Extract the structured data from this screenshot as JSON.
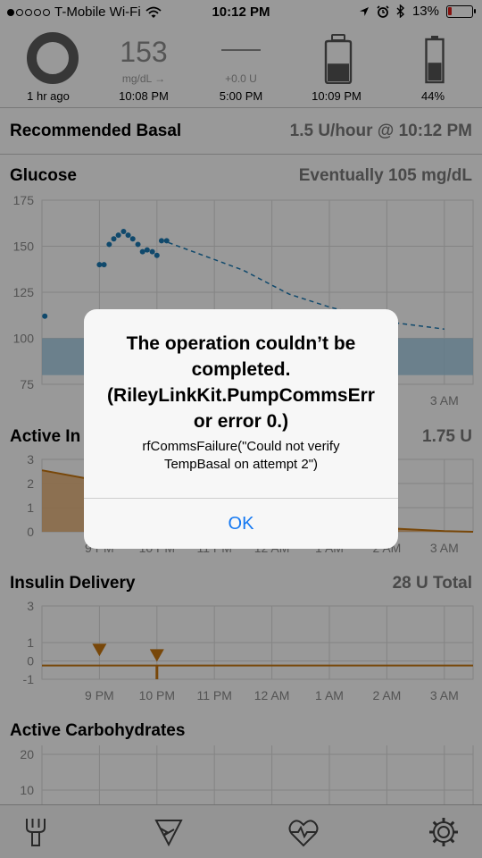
{
  "status_bar": {
    "carrier": "T-Mobile Wi-Fi",
    "time": "10:12 PM",
    "battery": "13%",
    "signal_strength": 1,
    "icons": [
      "wifi-icon",
      "location-icon",
      "alarm-icon",
      "bluetooth-icon",
      "battery-icon"
    ]
  },
  "hud": {
    "loop_caption": "1 hr ago",
    "glucose_value": "153",
    "glucose_unit": "mg/dL →",
    "glucose_time": "10:08 PM",
    "basal_dose": "+0.0 U",
    "basal_time": "5:00 PM",
    "reservoir_time": "10:09 PM",
    "reservoir_level": 0.45,
    "pump_battery": "44%",
    "pump_battery_level": 0.44
  },
  "recommended_basal": {
    "label": "Recommended Basal",
    "value": "1.5 U/hour @ 10:12 PM"
  },
  "glucose_section": {
    "title": "Glucose",
    "eventually": "Eventually 105 mg/dL"
  },
  "active_insulin_section": {
    "title": "Active In",
    "value": "1.75 U"
  },
  "insulin_delivery_section": {
    "title": "Insulin Delivery",
    "value": "28 U Total"
  },
  "active_carbs_section": {
    "title": "Active Carbohydrates"
  },
  "time_ticks": [
    "9 PM",
    "10 PM",
    "11 PM",
    "12 AM",
    "1 AM",
    "2 AM",
    "3 AM"
  ],
  "chart_data": [
    {
      "type": "scatter",
      "name": "glucose",
      "x_unit": "hours after 8 PM",
      "xlim": [
        8.0,
        15.5
      ],
      "ylim": [
        75,
        175
      ],
      "yticks": [
        75,
        100,
        125,
        150,
        175
      ],
      "target_range": [
        80,
        100
      ],
      "points": [
        [
          8.05,
          112
        ],
        [
          9.0,
          140
        ],
        [
          9.08,
          140
        ],
        [
          9.17,
          151
        ],
        [
          9.25,
          154
        ],
        [
          9.33,
          156
        ],
        [
          9.42,
          158
        ],
        [
          9.5,
          156
        ],
        [
          9.58,
          154
        ],
        [
          9.67,
          151
        ],
        [
          9.75,
          147
        ],
        [
          9.83,
          148
        ],
        [
          9.92,
          147
        ],
        [
          10.0,
          145
        ],
        [
          10.08,
          153
        ],
        [
          10.17,
          153
        ]
      ],
      "prediction": [
        [
          10.2,
          152
        ],
        [
          11.5,
          137
        ],
        [
          12.3,
          124
        ],
        [
          13.0,
          117
        ],
        [
          14.0,
          109
        ],
        [
          15.0,
          105
        ]
      ]
    },
    {
      "type": "area",
      "name": "active insulin",
      "ylim": [
        0,
        3
      ],
      "yticks": [
        0,
        1,
        2,
        3
      ],
      "points": [
        [
          8.0,
          2.55
        ],
        [
          8.8,
          2.2
        ],
        [
          9.5,
          1.9
        ],
        [
          10.2,
          1.75
        ],
        [
          11.0,
          1.35
        ],
        [
          12.0,
          0.85
        ],
        [
          13.0,
          0.45
        ],
        [
          14.0,
          0.15
        ],
        [
          15.0,
          0.03
        ],
        [
          15.5,
          0.0
        ]
      ]
    },
    {
      "type": "bar",
      "name": "insulin delivery",
      "ylim": [
        -1,
        3
      ],
      "yticks": [
        -1,
        0,
        1,
        3
      ],
      "baseline": -0.25,
      "boluses": [
        [
          9.0,
          0.6
        ],
        [
          10.0,
          0.3
        ]
      ],
      "temp_basal": [
        [
          10.0,
          -1.0
        ]
      ]
    },
    {
      "type": "line",
      "name": "active carbohydrates",
      "yticks": [
        20,
        10
      ]
    }
  ]
}
